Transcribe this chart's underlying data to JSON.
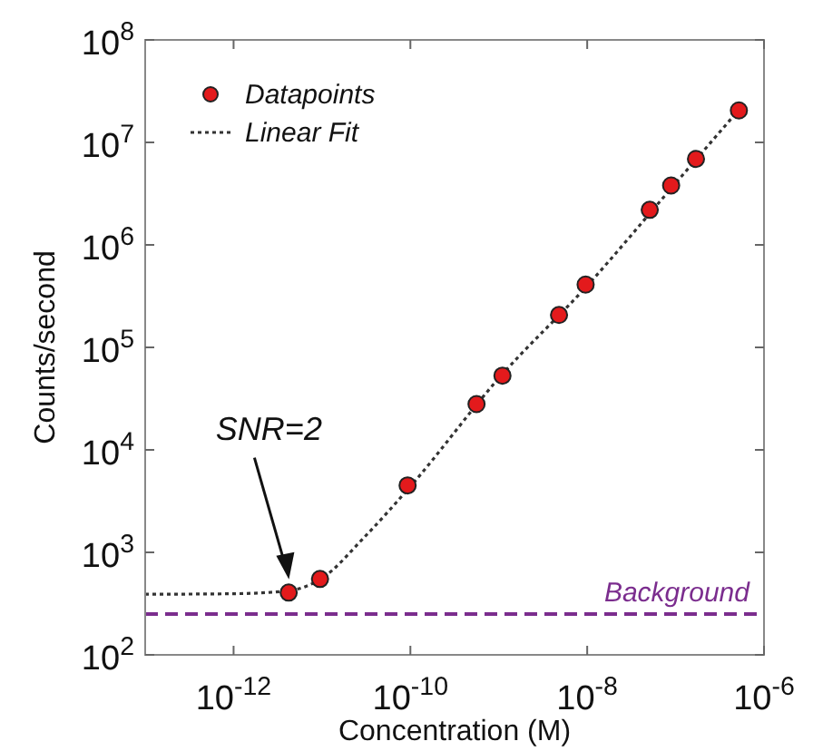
{
  "chart_data": {
    "type": "scatter",
    "xlabel": "Concentration (M)",
    "ylabel": "Counts/second",
    "log": "xy",
    "legend": "top left",
    "marker": "circle",
    "xlim": [
      1e-13,
      1e-06
    ],
    "ylim": [
      100,
      100000000
    ],
    "xticks": [
      {
        "value": 1e-12,
        "label": "10$^{-12}$"
      },
      {
        "value": 1e-10,
        "label": "10$^{-10}$"
      },
      {
        "value": 1e-08,
        "label": "10$^{-8}$"
      },
      {
        "value": 1e-06,
        "label": "10$^{-6}$"
      }
    ],
    "yticks": [
      {
        "value": 100,
        "label": "10$^{2}$"
      },
      {
        "value": 1000,
        "label": "10$^{3}$"
      },
      {
        "value": 10000,
        "label": "10$^{4}$"
      },
      {
        "value": 100000,
        "label": "10$^{5}$"
      },
      {
        "value": 1000000,
        "label": "10$^{6}$"
      },
      {
        "value": 10000000,
        "label": "10$^{7}$"
      },
      {
        "value": 100000000,
        "label": "10$^{8}$"
      }
    ],
    "series": [
      {
        "name": "Datapoints",
        "color": "#e31a1c",
        "x": [
          4.2e-12,
          9.5e-12,
          9.3e-11,
          5.6e-10,
          1.1e-09,
          4.8e-09,
          9.6e-09,
          5.1e-08,
          8.9e-08,
          1.7e-07,
          5.2e-07
        ],
        "values": [
          405,
          550,
          4500,
          28000,
          53000,
          207000,
          410000,
          2200000,
          3800000,
          6900000,
          20500000
        ]
      },
      {
        "name": "Linear Fit",
        "type": "line",
        "color": "#333333",
        "line_style": "dotted",
        "marker": "none",
        "x": [
          1e-13,
          1e-12,
          4e-12,
          1e-11,
          3e-11,
          1e-10,
          1e-09,
          1e-08,
          1e-07,
          5e-07
        ],
        "values": [
          390,
          395,
          420,
          560,
          1400,
          4400,
          50000,
          400000,
          4000000,
          20000000
        ]
      }
    ],
    "ref_lines": [
      {
        "axis": "y",
        "value": 250,
        "label": "Background",
        "color": "#7b2d8e",
        "line_style": "dashed"
      }
    ],
    "annotations": [
      "SNR=2"
    ]
  }
}
